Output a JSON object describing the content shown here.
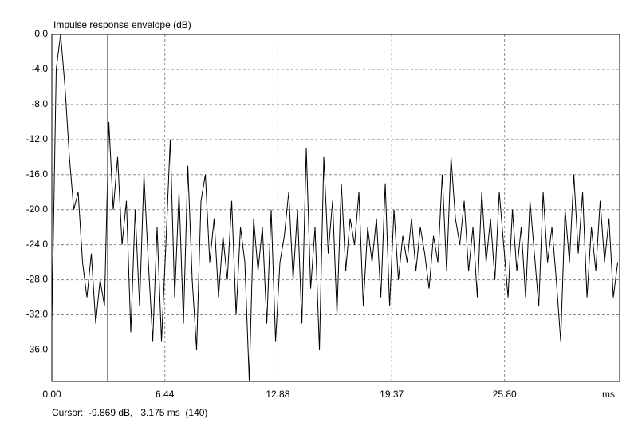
{
  "chart_data": {
    "type": "line",
    "title": "Impulse response envelope (dB)",
    "xlabel": "ms",
    "x": [
      0,
      0.25,
      0.5,
      0.75,
      1,
      1.25,
      1.5,
      1.75,
      2,
      2.25,
      2.5,
      2.75,
      3,
      3.25,
      3.5,
      3.75,
      4,
      4.25,
      4.5,
      4.75,
      5,
      5.25,
      5.5,
      5.75,
      6,
      6.25,
      6.5,
      6.75,
      7,
      7.25,
      7.5,
      7.75,
      8,
      8.25,
      8.5,
      8.75,
      9,
      9.25,
      9.5,
      9.75,
      10,
      10.25,
      10.5,
      10.75,
      11,
      11.25,
      11.5,
      11.75,
      12,
      12.25,
      12.5,
      12.75,
      13,
      13.25,
      13.5,
      13.75,
      14,
      14.25,
      14.5,
      14.75,
      15,
      15.25,
      15.5,
      15.75,
      16,
      16.25,
      16.5,
      16.75,
      17,
      17.25,
      17.5,
      17.75,
      18,
      18.25,
      18.5,
      18.75,
      19,
      19.25,
      19.5,
      19.75,
      20,
      20.25,
      20.5,
      20.75,
      21,
      21.25,
      21.5,
      21.75,
      22,
      22.25,
      22.5,
      22.75,
      23,
      23.25,
      23.5,
      23.75,
      24,
      24.25,
      24.5,
      24.75,
      25,
      25.25,
      25.5,
      25.75,
      26,
      26.25,
      26.5,
      26.75,
      27,
      27.25,
      27.5,
      27.75,
      28,
      28.25,
      28.5,
      28.75,
      29,
      29.25,
      29.5,
      29.75,
      30,
      30.25,
      30.5,
      30.75,
      31,
      31.25,
      31.5,
      31.75,
      32,
      32.25
    ],
    "series": [
      {
        "name": "Envelope",
        "color": "#000000",
        "values": [
          -33,
          -4,
          0,
          -6,
          -14,
          -20,
          -18,
          -26,
          -30,
          -25,
          -33,
          -28,
          -31,
          -10,
          -20,
          -14,
          -24,
          -19,
          -34,
          -20,
          -31,
          -16,
          -26,
          -35,
          -22,
          -35,
          -24,
          -12,
          -30,
          -18,
          -33,
          -15,
          -28,
          -36,
          -19,
          -16,
          -26,
          -21,
          -30,
          -23,
          -28,
          -19,
          -32,
          -22,
          -26,
          -39.5,
          -21,
          -27,
          -22,
          -33,
          -20,
          -35,
          -26,
          -23,
          -18,
          -28,
          -20,
          -33,
          -13,
          -29,
          -22,
          -36,
          -14,
          -25,
          -19,
          -32,
          -17,
          -27,
          -21,
          -24,
          -18,
          -31,
          -22,
          -26,
          -21,
          -30,
          -17,
          -31,
          -20,
          -28,
          -23,
          -26,
          -21,
          -27,
          -22,
          -25,
          -29,
          -23,
          -26,
          -16,
          -27,
          -14,
          -21,
          -24,
          -19,
          -27,
          -22,
          -30,
          -18,
          -26,
          -21,
          -28,
          -18,
          -24,
          -30,
          -20,
          -27,
          -22,
          -30,
          -19,
          -25,
          -31,
          -18,
          -26,
          -22,
          -28,
          -35,
          -20,
          -26,
          -16,
          -25,
          -18,
          -30,
          -22,
          -27,
          -19,
          -26,
          -21,
          -30,
          -26
        ]
      }
    ],
    "xlim": [
      0,
      32.36
    ],
    "ylim": [
      -39.6,
      0
    ],
    "xticks": [
      {
        "value": 0,
        "label": "0.00"
      },
      6.44,
      12.88,
      19.37,
      {
        "value": 25.8,
        "label": "25.80"
      }
    ],
    "yticks": [
      {
        "value": 0,
        "label": "0.0"
      },
      {
        "value": -4,
        "label": "-4.0"
      },
      {
        "value": -8,
        "label": "-8.0"
      },
      {
        "value": -12,
        "label": "-12.0"
      },
      {
        "value": -16,
        "label": "-16.0"
      },
      {
        "value": -20,
        "label": "-20.0"
      },
      {
        "value": -24,
        "label": "-24.0"
      },
      {
        "value": -28,
        "label": "-28.0"
      },
      {
        "value": -32,
        "label": "-32.0"
      },
      {
        "value": -36,
        "label": "-36.0"
      }
    ],
    "grid": true,
    "cursor": {
      "x": 3.175,
      "color": "#ff0000",
      "label": "Cursor:  -9.869 dB,   3.175 ms  (140)"
    }
  }
}
